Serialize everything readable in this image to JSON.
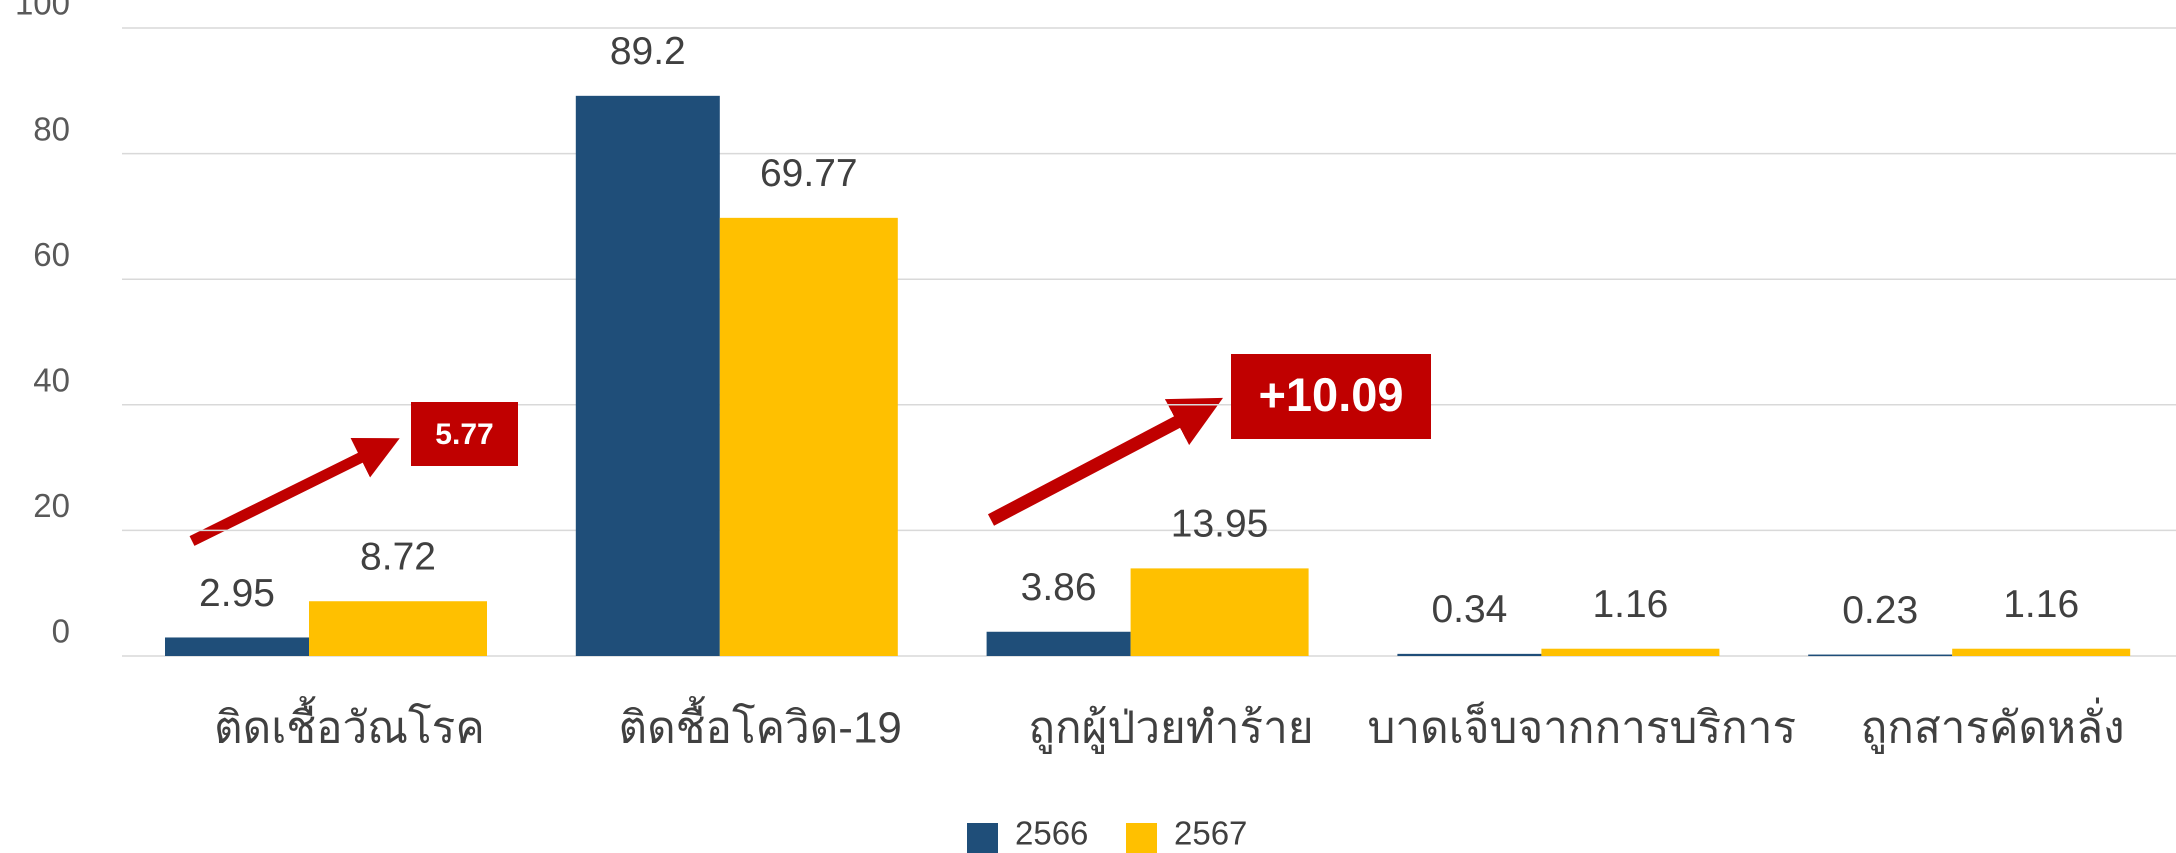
{
  "chart_data": {
    "type": "bar",
    "categories": [
      "ติดเชื้อวัณโรค",
      "ติดชื้อโควิด-19",
      "ถูกผู้ป่วยทำร้าย",
      "บาดเจ็บจากการบริการ",
      "ถูกสารคัดหลั่ง"
    ],
    "series": [
      {
        "name": "2566",
        "color": "#1f4e79",
        "values": [
          2.95,
          89.2,
          3.86,
          0.34,
          0.23
        ]
      },
      {
        "name": "2567",
        "color": "#ffc000",
        "values": [
          8.72,
          69.77,
          13.95,
          1.16,
          1.16
        ]
      }
    ],
    "ylim": [
      0,
      100
    ],
    "yticks": [
      0,
      20,
      40,
      60,
      80,
      100
    ],
    "grid": true,
    "legend": "bottom",
    "annotations": [
      "5.77",
      "+10.09"
    ]
  }
}
